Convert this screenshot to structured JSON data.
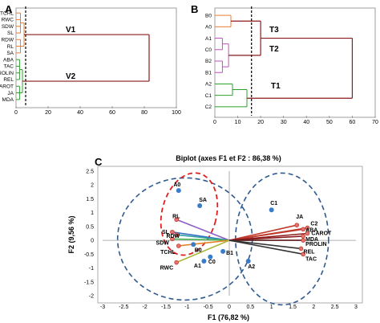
{
  "panels": {
    "a": "A",
    "b": "B",
    "c": "C"
  },
  "chart_data": [
    {
      "type": "dendrogram",
      "panel": "A",
      "leaves": [
        "TCHL",
        "RWC",
        "SDW",
        "SL",
        "RDW",
        "RL",
        "SA",
        "ABA",
        "TAC",
        "PROLIN",
        "REL",
        "CAROT",
        "JA",
        "MDA"
      ],
      "xlim": [
        0,
        100
      ],
      "xticks": [
        "0",
        "20",
        "40",
        "60",
        "80",
        "100"
      ],
      "cut_height": 6,
      "root_height": 83,
      "clusters": [
        {
          "label": "V1",
          "color": "#ED7D31",
          "leaves": [
            "TCHL",
            "RWC",
            "SDW",
            "SL",
            "RDW",
            "RL",
            "SA"
          ],
          "merge_height": 5
        },
        {
          "label": "V2",
          "color": "#2CA02C",
          "leaves": [
            "ABA",
            "TAC",
            "PROLIN",
            "REL",
            "CAROT",
            "JA",
            "MDA"
          ],
          "merge_height": 4
        }
      ],
      "link_color": "#8B1A1A"
    },
    {
      "type": "dendrogram",
      "panel": "B",
      "leaves": [
        "B0",
        "A0",
        "A1",
        "C0",
        "B2",
        "B1",
        "A2",
        "C1",
        "C2"
      ],
      "xlim": [
        0,
        70
      ],
      "xticks": [
        "0",
        "10",
        "20",
        "30",
        "40",
        "50",
        "60",
        "70"
      ],
      "cut_height": 16,
      "root_height": 60,
      "clusters": [
        {
          "label": "T3",
          "color": "#ED7D31",
          "leaves": [
            "B0",
            "A0"
          ],
          "merge_height": 7
        },
        {
          "label": "T2",
          "color": "#C050C0",
          "leaves": [
            "A1",
            "C0",
            "B2",
            "B1"
          ],
          "merge_height": 6
        },
        {
          "label": "T1",
          "color": "#2CA02C",
          "leaves": [
            "A2",
            "C1",
            "C2"
          ],
          "merge_height": 14
        }
      ],
      "link_color": "#8B1A1A"
    },
    {
      "type": "scatter",
      "panel": "C",
      "title": "Biplot (axes F1 et F2 : 86,38 %)",
      "xlabel": "F1 (76,82 %)",
      "ylabel": "F2 (9,56 %)",
      "xlim": [
        -3,
        3
      ],
      "ylim": [
        -2,
        2.5
      ],
      "xticks": [
        "-3",
        "-2.5",
        "-2",
        "-1.5",
        "-1",
        "-0.5",
        "0",
        "0.5",
        "1",
        "1.5",
        "2",
        "2.5",
        "3"
      ],
      "yticks": [
        "-2",
        "-1.5",
        "-1",
        "-0.5",
        "0",
        "0.5",
        "1",
        "1.5",
        "2",
        "2.5"
      ],
      "observations": [
        {
          "name": "A0",
          "x": -1.2,
          "y": 1.8
        },
        {
          "name": "SA",
          "x": -0.7,
          "y": 1.25
        },
        {
          "name": "C1",
          "x": 1.0,
          "y": 1.1
        },
        {
          "name": "B0",
          "x": -0.85,
          "y": -0.15
        },
        {
          "name": "C0",
          "x": -0.45,
          "y": -0.6
        },
        {
          "name": "B1",
          "x": -0.15,
          "y": -0.4
        },
        {
          "name": "A1",
          "x": -0.6,
          "y": -0.75
        },
        {
          "name": "A2",
          "x": 0.45,
          "y": -0.75
        }
      ],
      "variables": [
        {
          "name": "RL",
          "x": -1.25,
          "y": 0.75,
          "color": "#8B5CC4"
        },
        {
          "name": "SL",
          "x": -1.35,
          "y": 0.3,
          "color": "#3A6FC4"
        },
        {
          "name": "RDW",
          "x": -1.25,
          "y": 0.2,
          "color": "#2CA0A0"
        },
        {
          "name": "SDW",
          "x": -1.35,
          "y": 0.05,
          "color": "#4CAF50"
        },
        {
          "name": "TCHL",
          "x": -1.2,
          "y": -0.2,
          "color": "#E67E22"
        },
        {
          "name": "RWC",
          "x": -1.25,
          "y": -0.8,
          "color": "#ADB53A"
        },
        {
          "name": "JA",
          "x": 1.6,
          "y": 0.55,
          "color": "#C0392B"
        },
        {
          "name": "C2",
          "x": 1.85,
          "y": 0.45,
          "color": "#C0392B"
        },
        {
          "name": "ABA",
          "x": 1.75,
          "y": 0.4,
          "color": "#C0392B"
        },
        {
          "name": "CAROT",
          "x": 1.85,
          "y": 0.25,
          "color": "#8B1A1A"
        },
        {
          "name": "MDA",
          "x": 1.75,
          "y": 0.15,
          "color": "#8B1A1A"
        },
        {
          "name": "PROLIN",
          "x": 1.75,
          "y": 0.0,
          "color": "#5A1A1A"
        },
        {
          "name": "REL",
          "x": 1.7,
          "y": -0.3,
          "color": "#333333"
        },
        {
          "name": "TAC",
          "x": 1.75,
          "y": -0.5,
          "color": "#333333"
        }
      ]
    }
  ]
}
